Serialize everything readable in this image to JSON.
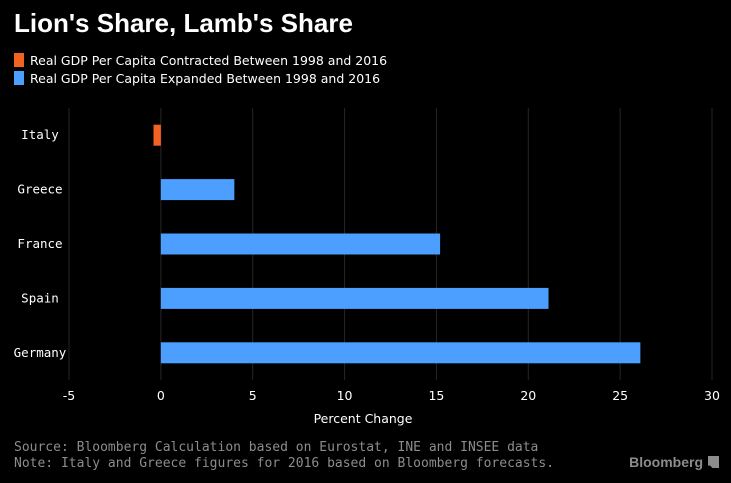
{
  "title": "Lion's Share, Lamb's Share",
  "legend": [
    {
      "label": "Real GDP Per Capita Contracted Between 1998 and 2016",
      "color": "#f26322"
    },
    {
      "label": "Real GDP Per Capita Expanded Between 1998 and 2016",
      "color": "#4d9fff"
    }
  ],
  "chart_data": {
    "type": "bar",
    "orientation": "horizontal",
    "categories": [
      "Italy",
      "Greece",
      "France",
      "Spain",
      "Germany"
    ],
    "values": [
      -0.4,
      4.0,
      15.2,
      21.1,
      26.1
    ],
    "colors": [
      "#f26322",
      "#4d9fff",
      "#4d9fff",
      "#4d9fff",
      "#4d9fff"
    ],
    "xlabel": "Percent Change",
    "xlim": [
      -5,
      30
    ],
    "xticks": [
      -5,
      0,
      5,
      10,
      15,
      20,
      25,
      30
    ],
    "grid": true
  },
  "footer": {
    "source": "Source: Bloomberg Calculation based on Eurostat, INE and INSEE data",
    "note": "Note: Italy and Greece figures for 2016 based on Bloomberg forecasts.",
    "brand": "Bloomberg"
  }
}
